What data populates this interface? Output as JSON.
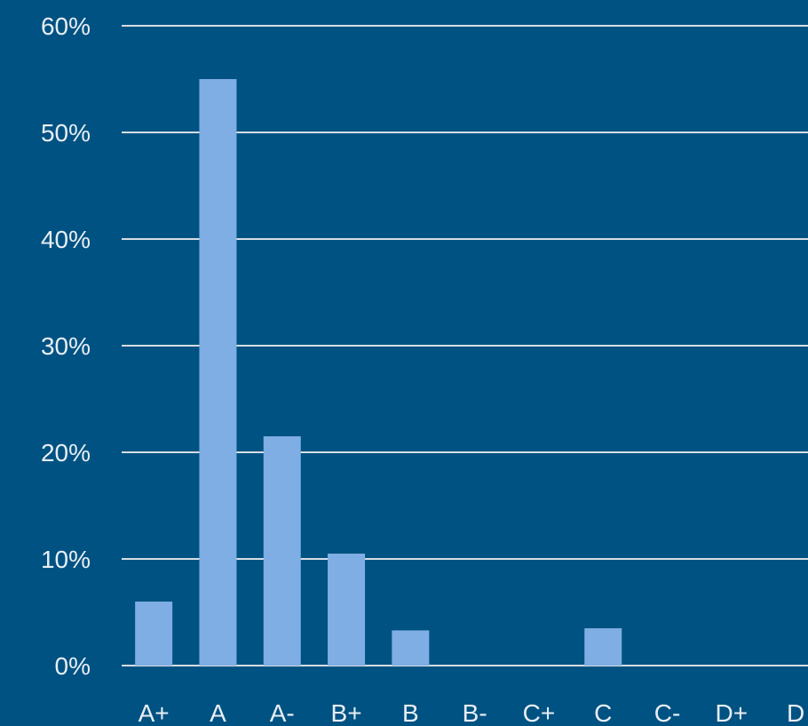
{
  "colors": {
    "background": "#005282",
    "bar": "#7eaee3",
    "grid": "#d8dde3",
    "text": "#e8eef5"
  },
  "chart_data": {
    "type": "bar",
    "categories": [
      "A+",
      "A",
      "A-",
      "B+",
      "B",
      "B-",
      "C+",
      "C",
      "C-",
      "D+",
      "D"
    ],
    "values": [
      6,
      55,
      21.5,
      10.5,
      3.3,
      0,
      0,
      3.5,
      0,
      0,
      0
    ],
    "ylim": [
      0,
      60
    ],
    "yticks": [
      0,
      10,
      20,
      30,
      40,
      50,
      60
    ],
    "ytick_labels": [
      "0%",
      "10%",
      "20%",
      "30%",
      "40%",
      "50%",
      "60%"
    ],
    "grid": true,
    "title": "",
    "xlabel": "",
    "ylabel": ""
  }
}
